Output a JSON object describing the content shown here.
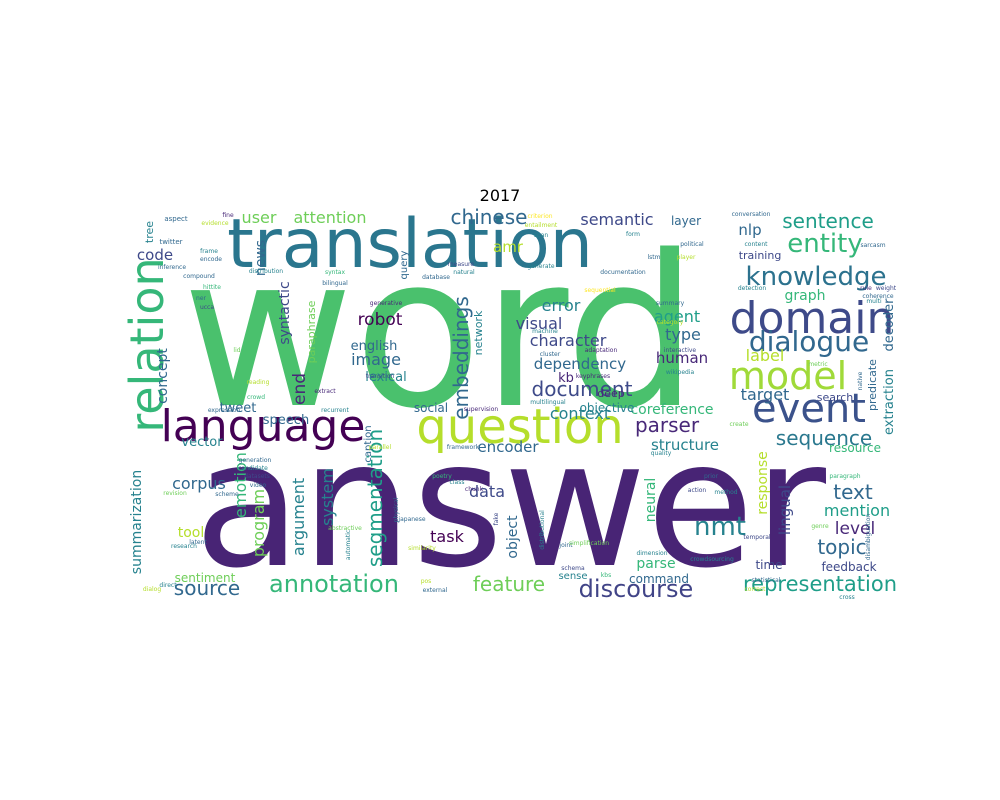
{
  "chart_data": {
    "type": "wordcloud",
    "title": "2017",
    "palette": [
      "#440154",
      "#482878",
      "#3e4989",
      "#31688e",
      "#26828e",
      "#1f9e89",
      "#35b779",
      "#6ece58",
      "#b5de2b",
      "#fde725"
    ],
    "words": [
      {
        "text": "word",
        "color": "#4ac16d"
      },
      {
        "text": "answer",
        "color": "#482475"
      },
      {
        "text": "translation",
        "color": "#2a768e"
      },
      {
        "text": "question",
        "color": "#b5de2b"
      },
      {
        "text": "domain",
        "color": "#3e4a89"
      },
      {
        "text": "relation",
        "color": "#35b779"
      },
      {
        "text": "language",
        "color": "#440154"
      },
      {
        "text": "event",
        "color": "#3b528b"
      },
      {
        "text": "model",
        "color": "#a0da39"
      },
      {
        "text": "dialogue",
        "color": "#31688e"
      },
      {
        "text": "knowledge",
        "color": "#2c728e"
      },
      {
        "text": "entity",
        "color": "#35b779"
      },
      {
        "text": "sentence",
        "color": "#1f9e89"
      },
      {
        "text": "annotation",
        "color": "#35b779"
      },
      {
        "text": "discourse",
        "color": "#414487"
      },
      {
        "text": "representation",
        "color": "#1f9e89"
      },
      {
        "text": "nmt",
        "color": "#26828e"
      },
      {
        "text": "sequence",
        "color": "#2a788e"
      },
      {
        "text": "document",
        "color": "#3e4a89"
      },
      {
        "text": "topic",
        "color": "#31688e"
      },
      {
        "text": "feature",
        "color": "#6ece58"
      },
      {
        "text": "source",
        "color": "#31688e"
      },
      {
        "text": "segmentation",
        "color": "#1f9e89"
      },
      {
        "text": "embeddings",
        "color": "#31688e"
      },
      {
        "text": "parser",
        "color": "#482878"
      },
      {
        "text": "structure",
        "color": "#26828e"
      },
      {
        "text": "text",
        "color": "#31688e"
      },
      {
        "text": "mention",
        "color": "#1f9e89"
      },
      {
        "text": "level",
        "color": "#482878"
      },
      {
        "text": "chinese",
        "color": "#31688e"
      },
      {
        "text": "semantic",
        "color": "#3e4989"
      },
      {
        "text": "user",
        "color": "#6ece58"
      },
      {
        "text": "attention",
        "color": "#6ece58"
      },
      {
        "text": "character",
        "color": "#3e4989"
      },
      {
        "text": "dependency",
        "color": "#31688e"
      },
      {
        "text": "visual",
        "color": "#3e4989"
      },
      {
        "text": "error",
        "color": "#26828e"
      },
      {
        "text": "image",
        "color": "#31688e"
      },
      {
        "text": "robot",
        "color": "#440154"
      },
      {
        "text": "agent",
        "color": "#1f9e89"
      },
      {
        "text": "type",
        "color": "#31688e"
      },
      {
        "text": "human",
        "color": "#482878"
      },
      {
        "text": "label",
        "color": "#b5de2b"
      },
      {
        "text": "target",
        "color": "#31688e"
      },
      {
        "text": "coreference",
        "color": "#35b779"
      },
      {
        "text": "context",
        "color": "#26828e"
      },
      {
        "text": "encoder",
        "color": "#31688e"
      },
      {
        "text": "data",
        "color": "#3e4989"
      },
      {
        "text": "task",
        "color": "#440154"
      },
      {
        "text": "argument",
        "color": "#26828e"
      },
      {
        "text": "system",
        "color": "#26828e"
      },
      {
        "text": "program",
        "color": "#6ece58"
      },
      {
        "text": "emotion",
        "color": "#35b779"
      },
      {
        "text": "corpus",
        "color": "#31688e"
      },
      {
        "text": "summarization",
        "color": "#26828e"
      },
      {
        "text": "concept",
        "color": "#31688e"
      },
      {
        "text": "code",
        "color": "#3e4989"
      },
      {
        "text": "news",
        "color": "#31688e"
      },
      {
        "text": "syntactic",
        "color": "#3e4989"
      },
      {
        "text": "tweet",
        "color": "#31688e"
      },
      {
        "text": "vector",
        "color": "#26828e"
      },
      {
        "text": "speech",
        "color": "#31688e"
      },
      {
        "text": "tool",
        "color": "#b5de2b"
      },
      {
        "text": "sentiment",
        "color": "#6ece58"
      },
      {
        "text": "end",
        "color": "#482878"
      },
      {
        "text": "english",
        "color": "#31688e"
      },
      {
        "text": "lexical",
        "color": "#26828e"
      },
      {
        "text": "amr",
        "color": "#b5de2b"
      },
      {
        "text": "nlp",
        "color": "#31688e"
      },
      {
        "text": "graph",
        "color": "#35b779"
      },
      {
        "text": "kb",
        "color": "#482878"
      },
      {
        "text": "objective",
        "color": "#26828e"
      },
      {
        "text": "social",
        "color": "#31688e"
      },
      {
        "text": "response",
        "color": "#b5de2b"
      },
      {
        "text": "lingual",
        "color": "#3e4989"
      },
      {
        "text": "parse",
        "color": "#35b779"
      },
      {
        "text": "neural",
        "color": "#35b779"
      },
      {
        "text": "object",
        "color": "#31688e"
      },
      {
        "text": "command",
        "color": "#31688e"
      },
      {
        "text": "time",
        "color": "#3e4989"
      },
      {
        "text": "feedback",
        "color": "#3e4989"
      },
      {
        "text": "extraction",
        "color": "#26828e"
      },
      {
        "text": "decoder",
        "color": "#31688e"
      },
      {
        "text": "resource",
        "color": "#35b779"
      },
      {
        "text": "search",
        "color": "#3e4989"
      },
      {
        "text": "training",
        "color": "#3e4989"
      },
      {
        "text": "layer",
        "color": "#31688e"
      },
      {
        "text": "predicate",
        "color": "#31688e"
      },
      {
        "text": "deep",
        "color": "#482878"
      },
      {
        "text": "network",
        "color": "#26828e"
      },
      {
        "text": "paraphrase",
        "color": "#6ece58"
      },
      {
        "text": "query",
        "color": "#31688e"
      },
      {
        "text": "caption",
        "color": "#31688e"
      },
      {
        "text": "tree",
        "color": "#26828e"
      },
      {
        "text": "sense",
        "color": "#26828e"
      },
      {
        "text": "twitter",
        "color": "#31688e"
      },
      {
        "text": "aspect",
        "color": "#31688e"
      },
      {
        "text": "fine",
        "color": "#482878"
      },
      {
        "text": "evidence",
        "color": "#b5de2b"
      },
      {
        "text": "frame",
        "color": "#26828e"
      },
      {
        "text": "encode",
        "color": "#31688e"
      },
      {
        "text": "inference",
        "color": "#31688e"
      },
      {
        "text": "compound",
        "color": "#31688e"
      },
      {
        "text": "hittite",
        "color": "#35b779"
      },
      {
        "text": "ner",
        "color": "#31688e"
      },
      {
        "text": "ucca",
        "color": "#3e4989"
      },
      {
        "text": "syntax",
        "color": "#35b779"
      },
      {
        "text": "distribution",
        "color": "#26828e"
      },
      {
        "text": "measure",
        "color": "#3e4989"
      },
      {
        "text": "criterion",
        "color": "#fde725"
      },
      {
        "text": "natural",
        "color": "#26828e"
      },
      {
        "text": "database",
        "color": "#31688e"
      },
      {
        "text": "generative",
        "color": "#482878"
      },
      {
        "text": "transition",
        "color": "#3e4989"
      },
      {
        "text": "extract",
        "color": "#482878"
      },
      {
        "text": "recurrent",
        "color": "#26828e"
      },
      {
        "text": "expression",
        "color": "#31688e"
      },
      {
        "text": "bilingual",
        "color": "#31688e"
      },
      {
        "text": "crowd",
        "color": "#35b779"
      },
      {
        "text": "reading",
        "color": "#b5de2b"
      },
      {
        "text": "lid",
        "color": "#6ece58"
      },
      {
        "text": "supervision",
        "color": "#482878"
      },
      {
        "text": "multilingual",
        "color": "#26828e"
      },
      {
        "text": "machine",
        "color": "#26828e"
      },
      {
        "text": "cluster",
        "color": "#31688e"
      },
      {
        "text": "generate",
        "color": "#26828e"
      },
      {
        "text": "entailment",
        "color": "#b5de2b"
      },
      {
        "text": "span",
        "color": "#26828e"
      },
      {
        "text": "sequential",
        "color": "#fde725"
      },
      {
        "text": "documentation",
        "color": "#31688e"
      },
      {
        "text": "adaptation",
        "color": "#482878"
      },
      {
        "text": "keyphrases",
        "color": "#482878"
      },
      {
        "text": "wikipedia",
        "color": "#26828e"
      },
      {
        "text": "interactive",
        "color": "#3e4989"
      },
      {
        "text": "summary",
        "color": "#31688e"
      },
      {
        "text": "category",
        "color": "#b5de2b"
      },
      {
        "text": "form",
        "color": "#26828e"
      },
      {
        "text": "political",
        "color": "#31688e"
      },
      {
        "text": "player",
        "color": "#b5de2b"
      },
      {
        "text": "lstm",
        "color": "#31688e"
      },
      {
        "text": "content",
        "color": "#26828e"
      },
      {
        "text": "detection",
        "color": "#26828e"
      },
      {
        "text": "conversation",
        "color": "#31688e"
      },
      {
        "text": "sarcasm",
        "color": "#31688e"
      },
      {
        "text": "rule",
        "color": "#482878"
      },
      {
        "text": "coherence",
        "color": "#31688e"
      },
      {
        "text": "weight",
        "color": "#3e4989"
      },
      {
        "text": "multi",
        "color": "#26828e"
      },
      {
        "text": "native",
        "color": "#31688e"
      },
      {
        "text": "metric",
        "color": "#6ece58"
      },
      {
        "text": "create",
        "color": "#6ece58"
      },
      {
        "text": "framework",
        "color": "#31688e"
      },
      {
        "text": "parallel",
        "color": "#b5de2b"
      },
      {
        "text": "quality",
        "color": "#26828e"
      },
      {
        "text": "scheme",
        "color": "#31688e"
      },
      {
        "text": "candidate",
        "color": "#26828e"
      },
      {
        "text": "generation",
        "color": "#31688e"
      },
      {
        "text": "datasets",
        "color": "#3e4989"
      },
      {
        "text": "video",
        "color": "#31688e"
      },
      {
        "text": "revision",
        "color": "#6ece58"
      },
      {
        "text": "latent",
        "color": "#31688e"
      },
      {
        "text": "research",
        "color": "#26828e"
      },
      {
        "text": "direct",
        "color": "#26828e"
      },
      {
        "text": "dialog",
        "color": "#b5de2b"
      },
      {
        "text": "automatic",
        "color": "#26828e"
      },
      {
        "text": "abstractive",
        "color": "#6ece58"
      },
      {
        "text": "physical",
        "color": "#31688e"
      },
      {
        "text": "japanese",
        "color": "#31688e"
      },
      {
        "text": "poetry",
        "color": "#35b779"
      },
      {
        "text": "class",
        "color": "#26828e"
      },
      {
        "text": "similarity",
        "color": "#b5de2b"
      },
      {
        "text": "chunk",
        "color": "#482878"
      },
      {
        "text": "fake",
        "color": "#3e4989"
      },
      {
        "text": "distributional",
        "color": "#26828e"
      },
      {
        "text": "joint",
        "color": "#31688e"
      },
      {
        "text": "simplification",
        "color": "#6ece58"
      },
      {
        "text": "schema",
        "color": "#3e4989"
      },
      {
        "text": "kbs",
        "color": "#35b779"
      },
      {
        "text": "external",
        "color": "#31688e"
      },
      {
        "text": "pos",
        "color": "#b5de2b"
      },
      {
        "text": "dimension",
        "color": "#26828e"
      },
      {
        "text": "crowdsourcing",
        "color": "#26828e"
      },
      {
        "text": "correct",
        "color": "#b5de2b"
      },
      {
        "text": "statistical",
        "color": "#31688e"
      },
      {
        "text": "prior",
        "color": "#31688e"
      },
      {
        "text": "action",
        "color": "#3e4989"
      },
      {
        "text": "method",
        "color": "#26828e"
      },
      {
        "text": "temporal",
        "color": "#3e4989"
      },
      {
        "text": "paragraph",
        "color": "#35b779"
      },
      {
        "text": "disambiguation",
        "color": "#31688e"
      },
      {
        "text": "genre",
        "color": "#6ece58"
      },
      {
        "text": "cross",
        "color": "#26828e"
      }
    ]
  }
}
